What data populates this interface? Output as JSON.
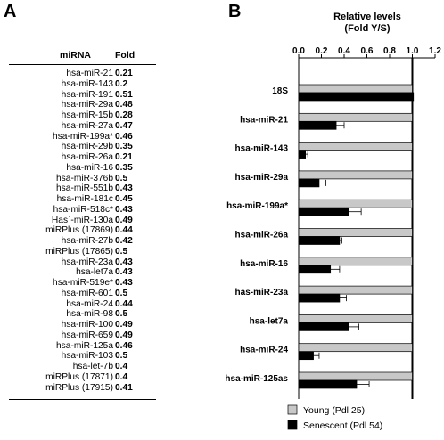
{
  "panel_a": {
    "letter": "A",
    "header": {
      "mirna": "miRNA",
      "fold": "Fold"
    },
    "rows": [
      {
        "name": "hsa-miR-21",
        "fold": "0.21"
      },
      {
        "name": "hsa-miR-143",
        "fold": "0.2"
      },
      {
        "name": "hsa-miR-191",
        "fold": "0.51"
      },
      {
        "name": "hsa-miR-29a",
        "fold": "0.48"
      },
      {
        "name": "hsa-miR-15b",
        "fold": "0.28"
      },
      {
        "name": "hsa-miR-27a",
        "fold": "0.47"
      },
      {
        "name": "hsa-miR-199a*",
        "fold": "0.46"
      },
      {
        "name": "hsa-miR-29b",
        "fold": "0.35"
      },
      {
        "name": "hsa-miR-26a",
        "fold": "0.21"
      },
      {
        "name": "hsa-miR-16",
        "fold": "0.35"
      },
      {
        "name": "hsa-miR-376b",
        "fold": "0.5"
      },
      {
        "name": "hsa-miR-551b",
        "fold": "0.43"
      },
      {
        "name": "hsa-miR-181c",
        "fold": "0.45"
      },
      {
        "name": "hsa-miR-518c*",
        "fold": "0.43"
      },
      {
        "name": "Has`-miR-130a",
        "fold": "0.49"
      },
      {
        "name": "miRPlus (17869)",
        "fold": "0.44"
      },
      {
        "name": "hsa-miR-27b",
        "fold": "0.42"
      },
      {
        "name": "miRPlus (17865)",
        "fold": "0.5"
      },
      {
        "name": "hsa-miR-23a",
        "fold": "0.43"
      },
      {
        "name": "hsa-let7a",
        "fold": "0.43"
      },
      {
        "name": "hsa-miR-519e*",
        "fold": "0.43"
      },
      {
        "name": "hsa-miR-601",
        "fold": "0.5"
      },
      {
        "name": "hsa-miR-24",
        "fold": "0.44"
      },
      {
        "name": "hsa-miR-98",
        "fold": "0.5"
      },
      {
        "name": "hsa-miR-100",
        "fold": "0.49"
      },
      {
        "name": "hsa-miR-659",
        "fold": "0.49"
      },
      {
        "name": "hsa-miR-125a",
        "fold": "0.46"
      },
      {
        "name": "hsa-miR-103",
        "fold": "0.5"
      },
      {
        "name": "hsa-let-7b",
        "fold": "0.4"
      },
      {
        "name": "miRPlus (17871)",
        "fold": "0.4"
      },
      {
        "name": "miRPlus (17915)",
        "fold": "0.41"
      }
    ]
  },
  "panel_b": {
    "letter": "B"
  },
  "chart_data": {
    "type": "bar",
    "orientation": "horizontal",
    "title": "Relative levels",
    "subtitle": "(Fold Y/S)",
    "xlim": [
      0.0,
      1.2
    ],
    "xticks": [
      "0.0",
      "0.2",
      "0.4",
      "0.6",
      "0.8",
      "1.0",
      "1.2"
    ],
    "reference_line": 1.0,
    "axis_position": "top",
    "legend_position": "bottom",
    "categories": [
      "18S",
      "hsa-miR-21",
      "hsa-miR-143",
      "hsa-miR-29a",
      "hsa-miR-199a*",
      "hsa-miR-26a",
      "hsa-miR-16",
      "has-miR-23a",
      "hsa-let7a",
      "hsa-miR-24",
      "hsa-miR-125as"
    ],
    "series": [
      {
        "name": "Young (Pdl 25)",
        "color": "#c8c8c8",
        "values": [
          1.0,
          1.0,
          1.0,
          1.0,
          1.0,
          1.0,
          1.0,
          1.0,
          1.0,
          1.0,
          1.0
        ],
        "errors": [
          0,
          0,
          0,
          0,
          0,
          0,
          0,
          0,
          0,
          0,
          0
        ]
      },
      {
        "name": "Senescent (Pdl 54)",
        "color": "#000000",
        "values": [
          1.01,
          0.33,
          0.06,
          0.18,
          0.44,
          0.36,
          0.28,
          0.36,
          0.44,
          0.13,
          0.51
        ],
        "errors": [
          0,
          0.07,
          0.02,
          0.06,
          0.11,
          0.02,
          0.08,
          0.06,
          0.09,
          0.05,
          0.11
        ]
      }
    ]
  }
}
